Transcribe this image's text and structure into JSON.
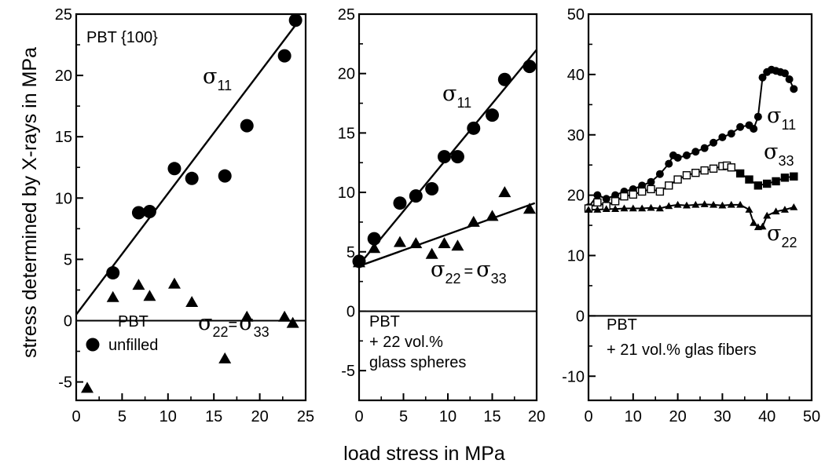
{
  "figure": {
    "ylabel": "stress determined by X-rays in MPa",
    "xlabel": "load stress in MPa"
  },
  "chart_data": [
    {
      "type": "scatter",
      "panel": "PBT unfilled",
      "xlim": [
        0,
        25
      ],
      "ylim": [
        -6.5,
        25
      ],
      "xticks": [
        0,
        5,
        10,
        15,
        20,
        25
      ],
      "yticks": [
        -5,
        0,
        5,
        10,
        15,
        20,
        25
      ],
      "grid": false,
      "legend": "lower-left",
      "annotations": {
        "title": "PBT {100}",
        "legend_line1": "PBT",
        "legend_line2": "unfilled",
        "sigma11": "σ",
        "sigma11_sub": "11",
        "sigma22": "σ",
        "sigma22_sub": "22",
        "equals": "=",
        "sigma33": "σ",
        "sigma33_sub": "33"
      },
      "series": [
        {
          "name": "σ11",
          "marker": "circle",
          "x": [
            4,
            6.8,
            8,
            10.7,
            12.6,
            16.2,
            18.6,
            22.7,
            23.9
          ],
          "y": [
            3.9,
            8.8,
            8.9,
            12.4,
            11.6,
            11.8,
            15.9,
            21.6,
            24.5
          ]
        },
        {
          "name": "σ22 = σ33",
          "marker": "triangle",
          "x": [
            1.2,
            4,
            6.8,
            8,
            10.7,
            12.6,
            16.2,
            18.6,
            22.7,
            23.6
          ],
          "y": [
            -5.5,
            1.9,
            2.9,
            2.0,
            3.0,
            1.5,
            -3.1,
            0.3,
            0.3,
            -0.2
          ]
        }
      ],
      "fit_lines": [
        {
          "x": [
            0,
            24.5
          ],
          "y": [
            0.5,
            24.7
          ]
        }
      ]
    },
    {
      "type": "scatter",
      "panel": "PBT + 22 vol.% glass spheres",
      "xlim": [
        0,
        20
      ],
      "ylim": [
        -7.5,
        25
      ],
      "xticks": [
        0,
        5,
        10,
        15,
        20
      ],
      "yticks": [
        -5,
        0,
        5,
        10,
        15,
        20,
        25
      ],
      "grid": false,
      "legend": "lower-left",
      "annotations": {
        "legend_line1": "PBT",
        "legend_line2": "+ 22 vol.%",
        "legend_line3": "glass spheres",
        "sigma11": "σ",
        "sigma11_sub": "11",
        "sigma22": "σ",
        "sigma22_sub": "22",
        "equals": "=",
        "sigma33": "σ",
        "sigma33_sub": "33"
      },
      "series": [
        {
          "name": "σ11",
          "marker": "circle",
          "x": [
            0,
            1.7,
            4.6,
            6.4,
            8.2,
            9.6,
            11.1,
            12.9,
            15,
            16.4,
            19.2
          ],
          "y": [
            4.2,
            6.1,
            9.1,
            9.7,
            10.3,
            13.0,
            13.0,
            15.4,
            16.5,
            19.5,
            20.6
          ]
        },
        {
          "name": "σ22 = σ33",
          "marker": "triangle",
          "x": [
            0,
            1.7,
            4.6,
            6.4,
            8.2,
            9.6,
            11.1,
            12.9,
            15,
            16.4,
            19.2
          ],
          "y": [
            4.1,
            5.3,
            5.8,
            5.7,
            4.8,
            5.7,
            5.5,
            7.5,
            8.0,
            10.0,
            8.6
          ]
        }
      ],
      "fit_lines": [
        {
          "x": [
            0,
            20
          ],
          "y": [
            3.9,
            22.0
          ]
        },
        {
          "x": [
            0,
            19.8
          ],
          "y": [
            3.8,
            9.1
          ]
        }
      ]
    },
    {
      "type": "line",
      "panel": "PBT + 21 vol.% glas fibers",
      "xlim": [
        0,
        50
      ],
      "ylim": [
        -14,
        50
      ],
      "xticks": [
        0,
        10,
        20,
        30,
        40,
        50
      ],
      "yticks": [
        -10,
        0,
        10,
        20,
        30,
        40,
        50
      ],
      "grid": false,
      "legend": "lower-left",
      "annotations": {
        "legend_line1": "PBT",
        "legend_line2": "+ 21 vol.% glas fibers",
        "sigma11": "σ",
        "sigma11_sub": "11",
        "sigma33": "σ",
        "sigma33_sub": "33",
        "sigma22": "σ",
        "sigma22_sub": "22"
      },
      "series": [
        {
          "name": "σ11",
          "marker": "circle",
          "x": [
            0,
            2,
            4,
            6,
            8,
            10,
            12,
            14,
            16,
            18,
            19,
            20,
            22,
            24,
            26,
            28,
            30,
            32,
            34,
            36,
            37,
            38,
            39,
            40,
            41,
            42,
            43,
            44,
            45,
            46
          ],
          "y": [
            18,
            20,
            19.4,
            20,
            20.6,
            21.0,
            21.6,
            22.2,
            23.5,
            25.2,
            26.6,
            26.2,
            26.6,
            27.2,
            27.8,
            28.7,
            29.6,
            30.2,
            31.3,
            31.6,
            31.0,
            33.0,
            39.5,
            40.4,
            40.8,
            40.6,
            40.4,
            40.2,
            39.2,
            37.6
          ]
        },
        {
          "name": "σ33",
          "marker": "square",
          "x": [
            0,
            2,
            4,
            6,
            8,
            10,
            12,
            14,
            16,
            18,
            20,
            22,
            24,
            26,
            28,
            30,
            31,
            32,
            34,
            36,
            38,
            40,
            42,
            44,
            46
          ],
          "y": [
            17.8,
            18.8,
            18.2,
            19.0,
            19.8,
            20.1,
            20.6,
            21.0,
            20.6,
            21.6,
            22.6,
            23.3,
            23.7,
            24.1,
            24.4,
            24.8,
            24.9,
            24.6,
            23.6,
            22.6,
            21.6,
            21.9,
            22.3,
            22.9,
            23.1
          ]
        },
        {
          "name": "σ22",
          "marker": "triangle",
          "x": [
            0,
            2,
            4,
            6,
            8,
            10,
            12,
            14,
            16,
            18,
            20,
            22,
            24,
            26,
            28,
            30,
            32,
            34,
            36,
            37,
            38,
            39,
            40,
            42,
            44,
            46
          ],
          "y": [
            17.6,
            17.6,
            17.7,
            17.7,
            17.8,
            17.8,
            17.8,
            17.9,
            17.8,
            18.2,
            18.4,
            18.3,
            18.4,
            18.5,
            18.4,
            18.3,
            18.4,
            18.4,
            17.6,
            15.4,
            14.7,
            14.8,
            16.6,
            17.3,
            17.6,
            18.0
          ]
        }
      ]
    }
  ]
}
